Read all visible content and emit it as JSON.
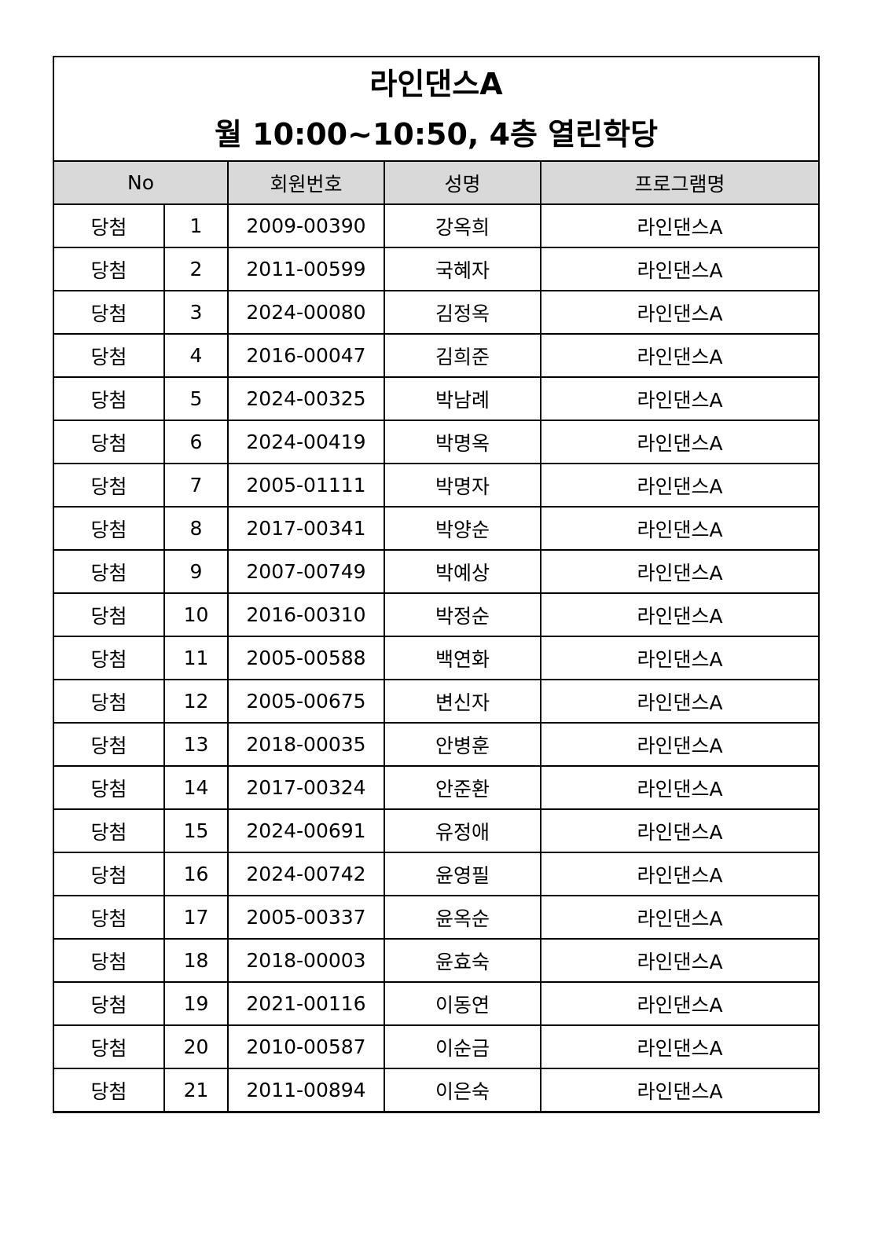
{
  "title": {
    "line1": "라인댄스A",
    "line2": "월 10:00~10:50, 4층 열린학당"
  },
  "headers": {
    "no": "No",
    "member_id": "회원번호",
    "name": "성명",
    "program": "프로그램명"
  },
  "colors": {
    "header_bg": "#d9d9d9",
    "border": "#000000"
  },
  "rows": [
    {
      "status": "당첨",
      "no": "1",
      "member_id": "2009-00390",
      "name": "강옥희",
      "program": "라인댄스A"
    },
    {
      "status": "당첨",
      "no": "2",
      "member_id": "2011-00599",
      "name": "국혜자",
      "program": "라인댄스A"
    },
    {
      "status": "당첨",
      "no": "3",
      "member_id": "2024-00080",
      "name": "김정옥",
      "program": "라인댄스A"
    },
    {
      "status": "당첨",
      "no": "4",
      "member_id": "2016-00047",
      "name": "김희준",
      "program": "라인댄스A"
    },
    {
      "status": "당첨",
      "no": "5",
      "member_id": "2024-00325",
      "name": "박남례",
      "program": "라인댄스A"
    },
    {
      "status": "당첨",
      "no": "6",
      "member_id": "2024-00419",
      "name": "박명옥",
      "program": "라인댄스A"
    },
    {
      "status": "당첨",
      "no": "7",
      "member_id": "2005-01111",
      "name": "박명자",
      "program": "라인댄스A"
    },
    {
      "status": "당첨",
      "no": "8",
      "member_id": "2017-00341",
      "name": "박양순",
      "program": "라인댄스A"
    },
    {
      "status": "당첨",
      "no": "9",
      "member_id": "2007-00749",
      "name": "박예상",
      "program": "라인댄스A"
    },
    {
      "status": "당첨",
      "no": "10",
      "member_id": "2016-00310",
      "name": "박정순",
      "program": "라인댄스A"
    },
    {
      "status": "당첨",
      "no": "11",
      "member_id": "2005-00588",
      "name": "백연화",
      "program": "라인댄스A"
    },
    {
      "status": "당첨",
      "no": "12",
      "member_id": "2005-00675",
      "name": "변신자",
      "program": "라인댄스A"
    },
    {
      "status": "당첨",
      "no": "13",
      "member_id": "2018-00035",
      "name": "안병훈",
      "program": "라인댄스A"
    },
    {
      "status": "당첨",
      "no": "14",
      "member_id": "2017-00324",
      "name": "안준환",
      "program": "라인댄스A"
    },
    {
      "status": "당첨",
      "no": "15",
      "member_id": "2024-00691",
      "name": "유정애",
      "program": "라인댄스A"
    },
    {
      "status": "당첨",
      "no": "16",
      "member_id": "2024-00742",
      "name": "윤영필",
      "program": "라인댄스A"
    },
    {
      "status": "당첨",
      "no": "17",
      "member_id": "2005-00337",
      "name": "윤옥순",
      "program": "라인댄스A"
    },
    {
      "status": "당첨",
      "no": "18",
      "member_id": "2018-00003",
      "name": "윤효숙",
      "program": "라인댄스A"
    },
    {
      "status": "당첨",
      "no": "19",
      "member_id": "2021-00116",
      "name": "이동연",
      "program": "라인댄스A"
    },
    {
      "status": "당첨",
      "no": "20",
      "member_id": "2010-00587",
      "name": "이순금",
      "program": "라인댄스A"
    },
    {
      "status": "당첨",
      "no": "21",
      "member_id": "2011-00894",
      "name": "이은숙",
      "program": "라인댄스A"
    }
  ]
}
